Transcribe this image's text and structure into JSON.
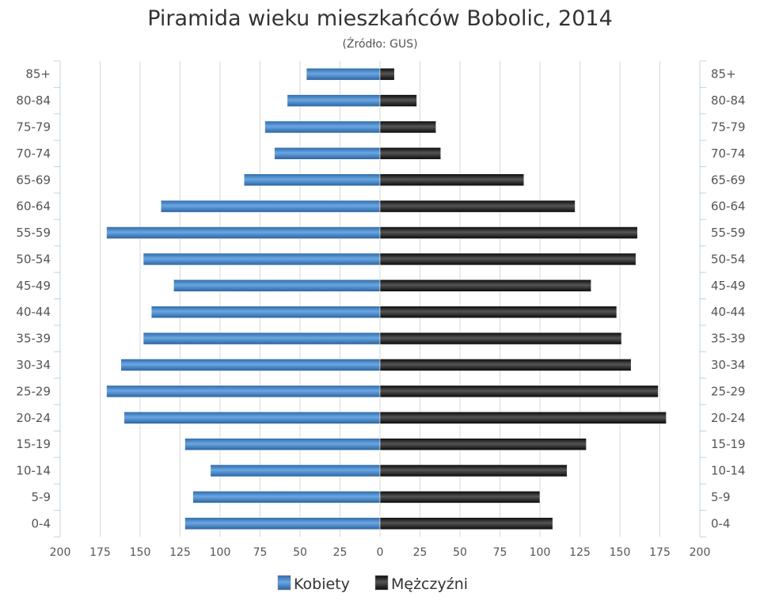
{
  "chart_data": {
    "type": "bar",
    "orientation": "horizontal",
    "title": "Piramida wieku mieszkańców Bobolic, 2014",
    "subtitle": "(Źródło: GUS)",
    "categories": [
      "85+",
      "80-84",
      "75-79",
      "70-74",
      "65-69",
      "60-64",
      "55-59",
      "50-54",
      "45-49",
      "40-44",
      "35-39",
      "30-34",
      "25-29",
      "20-24",
      "15-19",
      "10-14",
      "5-9",
      "0-4"
    ],
    "series": [
      {
        "name": "Kobiety",
        "color": "#3d7fc4",
        "side": "left",
        "values": [
          46,
          58,
          72,
          66,
          85,
          137,
          171,
          148,
          129,
          143,
          148,
          162,
          171,
          160,
          122,
          106,
          117,
          122
        ]
      },
      {
        "name": "Mężczyźni",
        "color": "#1a1a1a",
        "side": "right",
        "values": [
          9,
          23,
          35,
          38,
          90,
          122,
          161,
          160,
          132,
          148,
          151,
          157,
          174,
          179,
          129,
          117,
          100,
          108
        ]
      }
    ],
    "xlim": [
      -200,
      200
    ],
    "xticks": [
      "200",
      "175",
      "150",
      "125",
      "100",
      "75",
      "50",
      "25",
      "0",
      "25",
      "50",
      "75",
      "100",
      "125",
      "150",
      "175",
      "200"
    ],
    "grid": true,
    "legend": "bottom-center"
  }
}
